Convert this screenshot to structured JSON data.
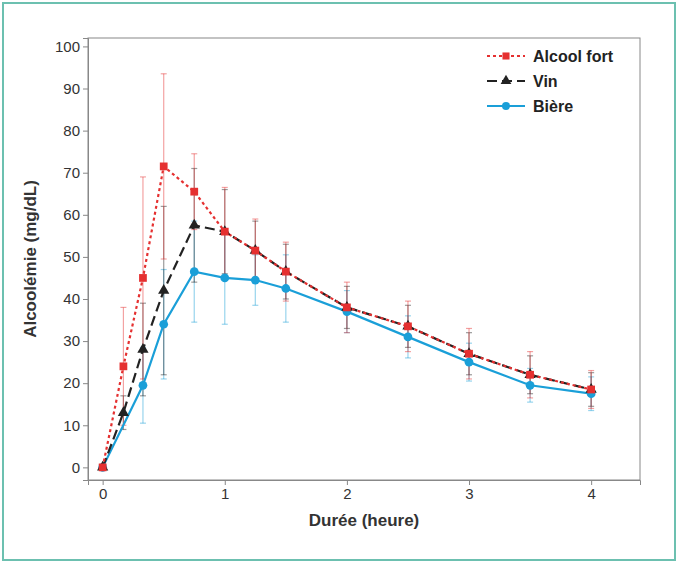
{
  "chart_data": {
    "type": "line",
    "x_label": "Durée (heure)",
    "y_label": "Alcoolémie (mg/dL)",
    "xlim": [
      -0.12,
      4.4
    ],
    "ylim": [
      -3,
      102
    ],
    "xticks": [
      0,
      1,
      2,
      3,
      4
    ],
    "yticks": [
      0,
      10,
      20,
      30,
      40,
      50,
      60,
      70,
      80,
      90,
      100
    ],
    "grid": false,
    "legend": "top-right",
    "series": [
      {
        "name": "Alcool fort",
        "color": "#e53030",
        "marker": "square",
        "line_style": "dotted",
        "x": [
          0,
          0.17,
          0.33,
          0.5,
          0.75,
          1,
          1.25,
          1.5,
          2,
          2.5,
          3,
          3.5,
          4
        ],
        "values": [
          0,
          24,
          45,
          71.5,
          65.5,
          56,
          51.5,
          46.5,
          38,
          33.5,
          27,
          22,
          18.5
        ],
        "errors": [
          0,
          14,
          24,
          22,
          9,
          10.5,
          7.5,
          7,
          6,
          6,
          6,
          5.5,
          4.5
        ]
      },
      {
        "name": "Vin",
        "color": "#222222",
        "marker": "triangle",
        "line_style": "dashed",
        "x": [
          0,
          0.17,
          0.33,
          0.5,
          0.75,
          1,
          1.25,
          1.5,
          2,
          2.5,
          3,
          3.5,
          4
        ],
        "values": [
          0,
          13,
          28,
          42,
          57.5,
          56,
          51.5,
          46.5,
          38,
          33.5,
          27,
          22,
          18.5
        ],
        "errors": [
          0,
          4,
          11,
          20,
          13.5,
          10,
          7,
          6.5,
          5,
          5,
          5,
          4.5,
          4
        ]
      },
      {
        "name": "Bière",
        "color": "#1a9fd8",
        "marker": "circle",
        "line_style": "solid",
        "x": [
          0,
          0.33,
          0.5,
          0.75,
          1,
          1.25,
          1.5,
          2,
          2.5,
          3,
          3.5,
          4
        ],
        "values": [
          0,
          19.5,
          34,
          46.5,
          45,
          44.5,
          42.5,
          37,
          31,
          25,
          19.5,
          17.5
        ],
        "errors": [
          0,
          9,
          13,
          12,
          11,
          6,
          8,
          5,
          5,
          4.5,
          4,
          4
        ]
      }
    ]
  }
}
